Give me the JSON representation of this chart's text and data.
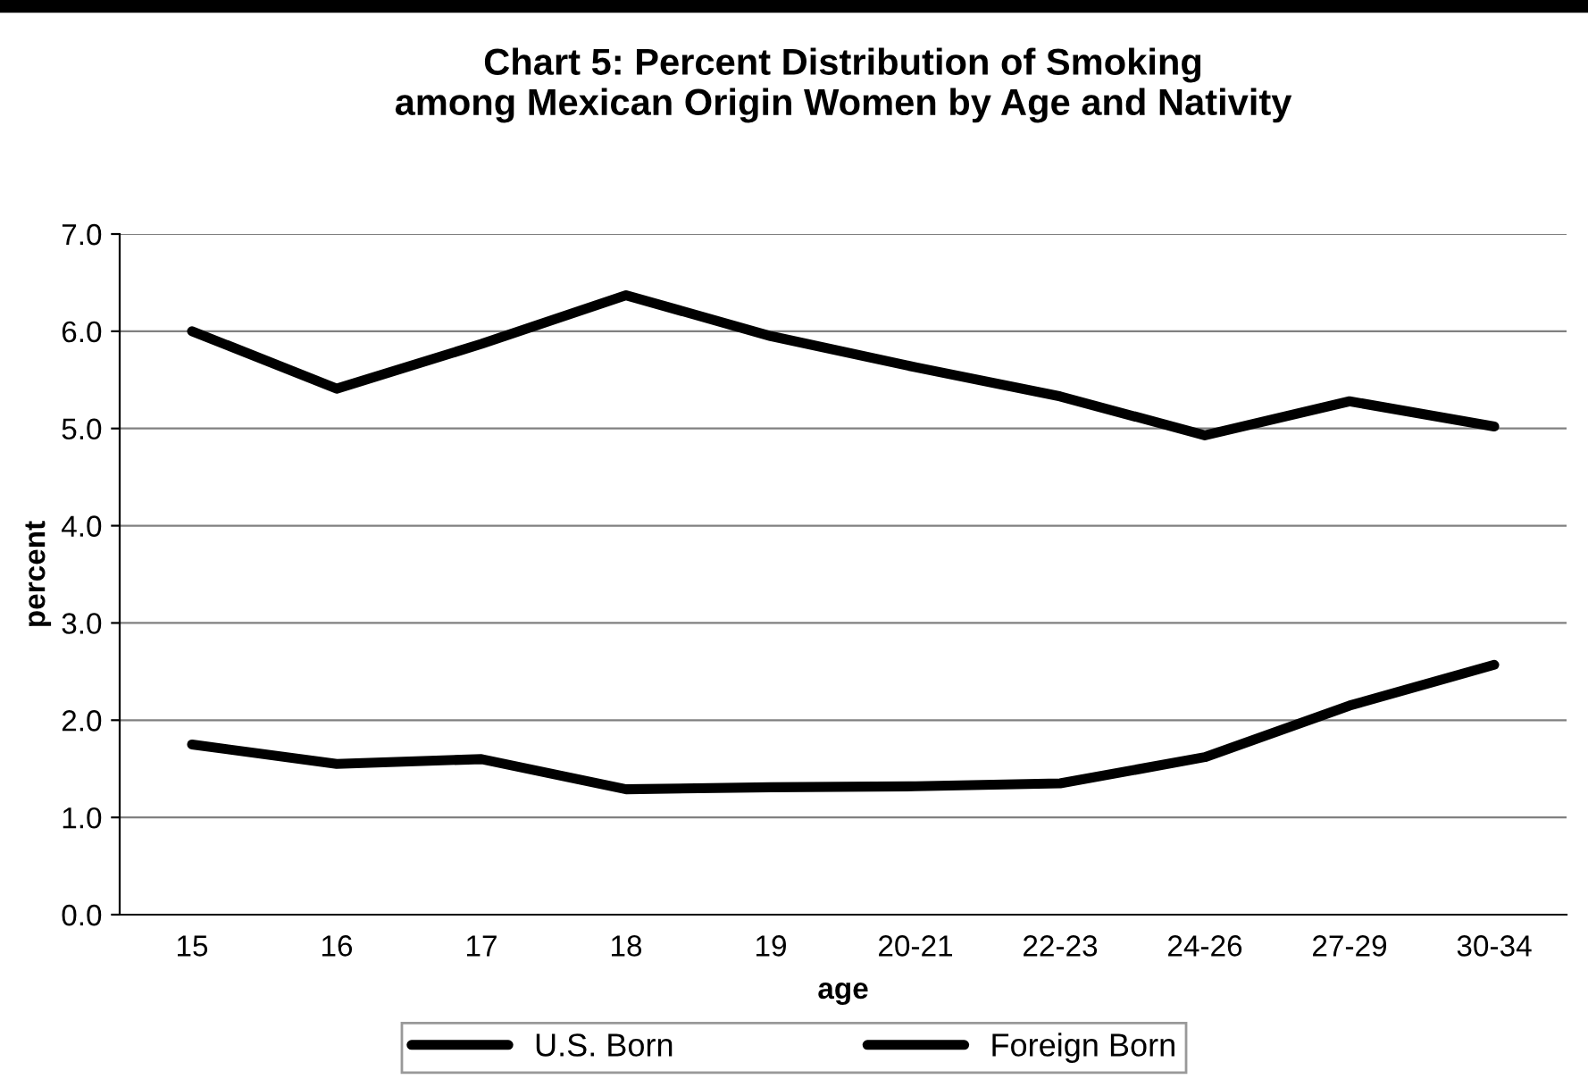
{
  "chart_data": {
    "type": "line",
    "title": "Chart 5: Percent Distribution of Smoking\namong Mexican Origin Women by Age and Nativity",
    "xlabel": "age",
    "ylabel": "percent",
    "categories": [
      "15",
      "16",
      "17",
      "18",
      "19",
      "20-21",
      "22-23",
      "24-26",
      "27-29",
      "30-34"
    ],
    "series": [
      {
        "name": "U.S. Born",
        "color": "#000000",
        "values": [
          6.0,
          5.41,
          5.87,
          6.37,
          5.95,
          5.63,
          5.33,
          4.93,
          5.28,
          5.02
        ]
      },
      {
        "name": "Foreign Born",
        "color": "#000000",
        "values": [
          1.75,
          1.55,
          1.6,
          1.29,
          1.31,
          1.32,
          1.35,
          1.62,
          2.15,
          2.57
        ]
      }
    ],
    "ylim": [
      0,
      7
    ],
    "yticks": [
      {
        "value": 0,
        "label": "0.0"
      },
      {
        "value": 1,
        "label": "1.0"
      },
      {
        "value": 2,
        "label": "2.0"
      },
      {
        "value": 3,
        "label": "3.0"
      },
      {
        "value": 4,
        "label": "4.0"
      },
      {
        "value": 5,
        "label": "5.0"
      },
      {
        "value": 6,
        "label": "6.0"
      },
      {
        "value": 7,
        "label": "7.0"
      }
    ],
    "grid": "y",
    "legend": "bottom",
    "marker": "none",
    "line_style": "solid"
  }
}
